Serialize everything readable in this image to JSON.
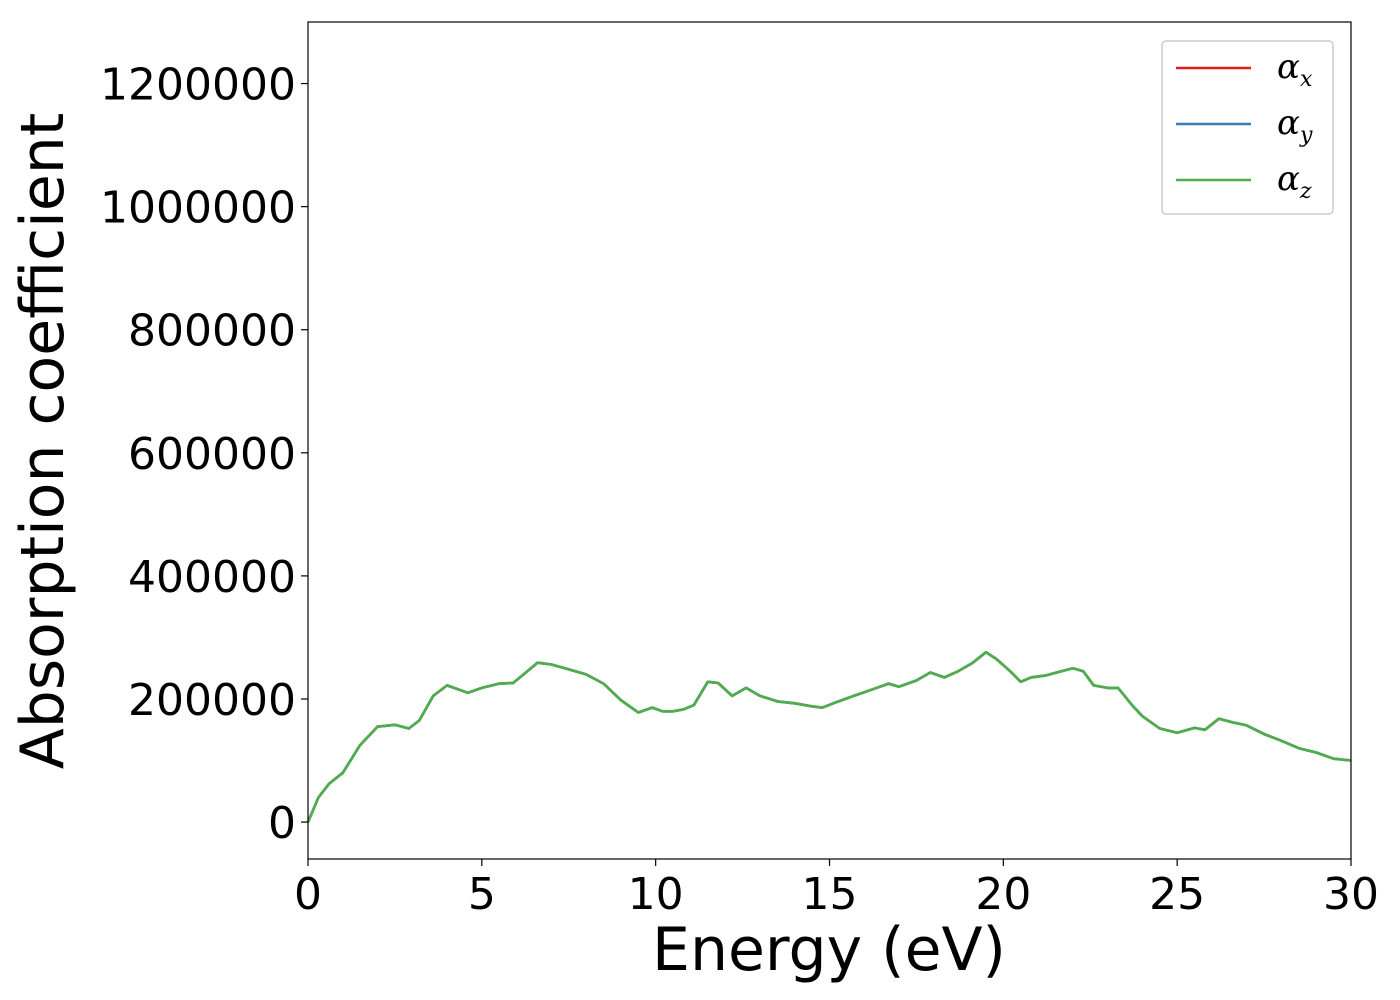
{
  "chart_data": {
    "type": "line",
    "xlabel": "Energy (eV)",
    "ylabel": "Absorption coefficient",
    "xlim": [
      0,
      30
    ],
    "ylim": [
      -60000,
      1300000
    ],
    "xticks": [
      "0",
      "5",
      "10",
      "15",
      "20",
      "25",
      "30"
    ],
    "yticks": [
      "0",
      "200000",
      "400000",
      "600000",
      "800000",
      "1000000",
      "1200000"
    ],
    "grid": false,
    "legend_placement": "top-right",
    "legend": [
      {
        "symbol": "α",
        "subscript": "x"
      },
      {
        "symbol": "α",
        "subscript": "y"
      },
      {
        "symbol": "α",
        "subscript": "z"
      }
    ],
    "colors": [
      "#e41a1c",
      "#377eb8",
      "#4daf4a"
    ],
    "x": [
      0,
      0.3,
      0.6,
      1.0,
      1.5,
      2.0,
      2.5,
      2.9,
      3.2,
      3.6,
      4.0,
      4.3,
      4.6,
      5.0,
      5.5,
      5.9,
      6.2,
      6.6,
      7.0,
      7.5,
      8.0,
      8.5,
      9.0,
      9.5,
      9.9,
      10.2,
      10.5,
      10.8,
      11.1,
      11.5,
      11.8,
      12.2,
      12.6,
      13.0,
      13.5,
      14.0,
      14.5,
      14.8,
      15.2,
      15.7,
      16.2,
      16.7,
      17.0,
      17.5,
      17.9,
      18.3,
      18.7,
      19.1,
      19.5,
      19.8,
      20.2,
      20.5,
      20.8,
      21.2,
      21.6,
      22.0,
      22.3,
      22.6,
      23.0,
      23.3,
      23.7,
      24.0,
      24.5,
      25.0,
      25.5,
      25.8,
      26.2,
      26.6,
      27.0,
      27.5,
      28.0,
      28.5,
      29.0,
      29.5,
      30.0
    ],
    "series": [
      {
        "values": [
          0,
          40000,
          62000,
          80000,
          125000,
          155000,
          158000,
          152000,
          165000,
          205000,
          222000,
          216000,
          210000,
          218000,
          225000,
          226000,
          240000,
          259000,
          256000,
          248000,
          240000,
          225000,
          198000,
          178000,
          186000,
          180000,
          180000,
          183000,
          190000,
          228000,
          226000,
          205000,
          218000,
          205000,
          196000,
          193000,
          188000,
          186000,
          195000,
          205000,
          215000,
          225000,
          220000,
          230000,
          243000,
          235000,
          245000,
          258000,
          276000,
          265000,
          245000,
          228000,
          235000,
          238000,
          244000,
          250000,
          245000,
          222000,
          218000,
          218000,
          190000,
          172000,
          152000,
          145000,
          153000,
          150000,
          168000,
          162000,
          157000,
          143000,
          132000,
          120000,
          113000,
          103000,
          100000
        ]
      },
      {
        "values": [
          0,
          40000,
          62000,
          80000,
          125000,
          155000,
          158000,
          152000,
          165000,
          205000,
          222000,
          216000,
          210000,
          218000,
          225000,
          226000,
          240000,
          259000,
          256000,
          248000,
          240000,
          225000,
          198000,
          178000,
          186000,
          180000,
          180000,
          183000,
          190000,
          228000,
          226000,
          205000,
          218000,
          205000,
          196000,
          193000,
          188000,
          186000,
          195000,
          205000,
          215000,
          225000,
          220000,
          230000,
          243000,
          235000,
          245000,
          258000,
          276000,
          265000,
          245000,
          228000,
          235000,
          238000,
          244000,
          250000,
          245000,
          222000,
          218000,
          218000,
          190000,
          172000,
          152000,
          145000,
          153000,
          150000,
          168000,
          162000,
          157000,
          143000,
          132000,
          120000,
          113000,
          103000,
          100000
        ]
      },
      {
        "values": [
          0,
          40000,
          62000,
          80000,
          125000,
          155000,
          158000,
          152000,
          165000,
          205000,
          222000,
          216000,
          210000,
          218000,
          225000,
          226000,
          240000,
          259000,
          256000,
          248000,
          240000,
          225000,
          198000,
          178000,
          186000,
          180000,
          180000,
          183000,
          190000,
          228000,
          226000,
          205000,
          218000,
          205000,
          196000,
          193000,
          188000,
          186000,
          195000,
          205000,
          215000,
          225000,
          220000,
          230000,
          243000,
          235000,
          245000,
          258000,
          276000,
          265000,
          245000,
          228000,
          235000,
          238000,
          244000,
          250000,
          245000,
          222000,
          218000,
          218000,
          190000,
          172000,
          152000,
          145000,
          153000,
          150000,
          168000,
          162000,
          157000,
          143000,
          132000,
          120000,
          113000,
          103000,
          100000
        ]
      }
    ]
  }
}
